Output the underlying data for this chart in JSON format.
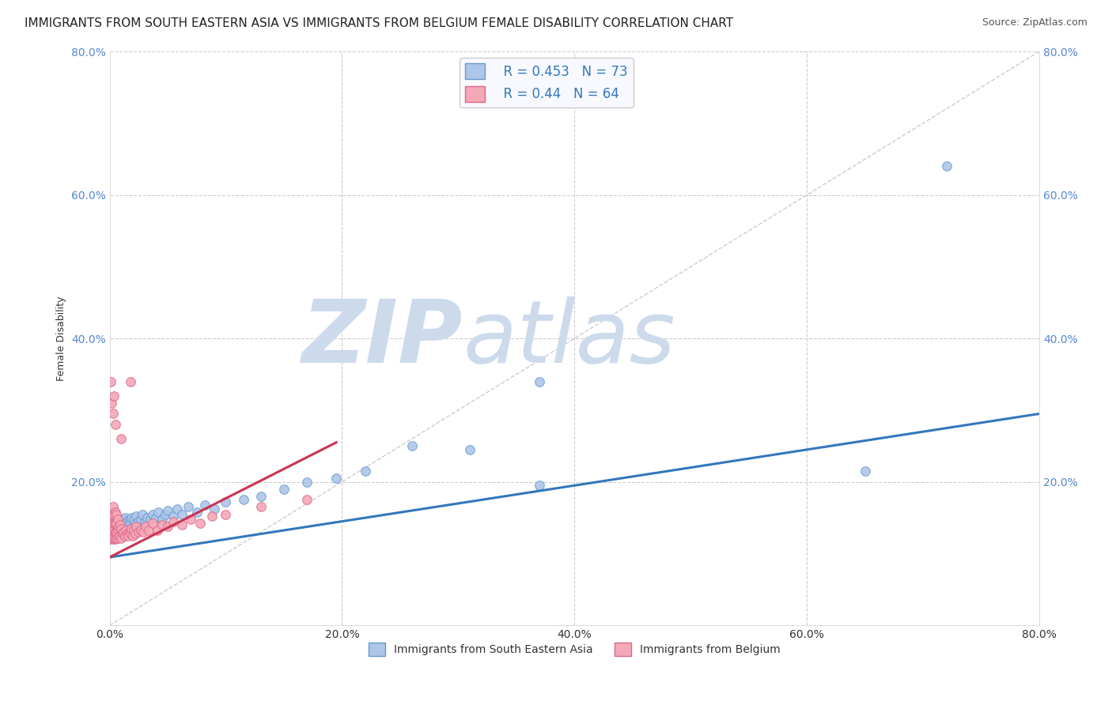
{
  "title": "IMMIGRANTS FROM SOUTH EASTERN ASIA VS IMMIGRANTS FROM BELGIUM FEMALE DISABILITY CORRELATION CHART",
  "source": "Source: ZipAtlas.com",
  "ylabel": "Female Disability",
  "xlim": [
    0.0,
    0.8
  ],
  "ylim": [
    0.0,
    0.8
  ],
  "xticks": [
    0.0,
    0.2,
    0.4,
    0.6,
    0.8
  ],
  "yticks": [
    0.0,
    0.2,
    0.4,
    0.6,
    0.8
  ],
  "xtick_labels": [
    "0.0%",
    "20.0%",
    "40.0%",
    "60.0%",
    "80.0%"
  ],
  "ytick_labels": [
    "",
    "20.0%",
    "40.0%",
    "60.0%",
    "80.0%"
  ],
  "series1": {
    "name": "Immigrants from South Eastern Asia",
    "color": "#aec6e8",
    "edge_color": "#6699cc",
    "R": 0.453,
    "N": 73,
    "trend_color": "#3377bb",
    "trend_x_start": 0.0,
    "trend_x_end": 0.8,
    "trend_y_start": 0.095,
    "trend_y_end": 0.295,
    "x": [
      0.001,
      0.001,
      0.002,
      0.002,
      0.003,
      0.003,
      0.003,
      0.004,
      0.004,
      0.004,
      0.005,
      0.005,
      0.005,
      0.006,
      0.006,
      0.006,
      0.007,
      0.007,
      0.008,
      0.008,
      0.009,
      0.009,
      0.01,
      0.01,
      0.011,
      0.011,
      0.012,
      0.012,
      0.013,
      0.013,
      0.014,
      0.015,
      0.015,
      0.016,
      0.017,
      0.018,
      0.019,
      0.02,
      0.021,
      0.022,
      0.023,
      0.025,
      0.027,
      0.028,
      0.03,
      0.032,
      0.035,
      0.037,
      0.04,
      0.042,
      0.045,
      0.048,
      0.05,
      0.055,
      0.058,
      0.062,
      0.068,
      0.075,
      0.082,
      0.09,
      0.1,
      0.115,
      0.13,
      0.15,
      0.17,
      0.195,
      0.22,
      0.26,
      0.31,
      0.37,
      0.37,
      0.65,
      0.72
    ],
    "y": [
      0.125,
      0.135,
      0.128,
      0.138,
      0.132,
      0.14,
      0.148,
      0.13,
      0.14,
      0.15,
      0.128,
      0.138,
      0.148,
      0.132,
      0.14,
      0.15,
      0.13,
      0.145,
      0.135,
      0.145,
      0.13,
      0.142,
      0.132,
      0.142,
      0.135,
      0.145,
      0.138,
      0.148,
      0.14,
      0.15,
      0.142,
      0.135,
      0.145,
      0.14,
      0.148,
      0.142,
      0.15,
      0.138,
      0.148,
      0.142,
      0.152,
      0.145,
      0.148,
      0.155,
      0.143,
      0.15,
      0.148,
      0.155,
      0.15,
      0.158,
      0.148,
      0.155,
      0.16,
      0.152,
      0.162,
      0.155,
      0.165,
      0.158,
      0.168,
      0.162,
      0.172,
      0.175,
      0.18,
      0.19,
      0.2,
      0.205,
      0.215,
      0.25,
      0.245,
      0.195,
      0.34,
      0.215,
      0.64
    ]
  },
  "series2": {
    "name": "Immigrants from Belgium",
    "color": "#f4a8b8",
    "edge_color": "#dd6688",
    "R": 0.44,
    "N": 64,
    "trend_color": "#cc3355",
    "trend_x_start": 0.0,
    "trend_x_end": 0.195,
    "trend_y_start": 0.095,
    "trend_y_end": 0.255,
    "x": [
      0.001,
      0.001,
      0.001,
      0.001,
      0.002,
      0.002,
      0.002,
      0.002,
      0.003,
      0.003,
      0.003,
      0.003,
      0.003,
      0.004,
      0.004,
      0.004,
      0.004,
      0.005,
      0.005,
      0.005,
      0.005,
      0.006,
      0.006,
      0.006,
      0.006,
      0.007,
      0.007,
      0.007,
      0.008,
      0.008,
      0.009,
      0.009,
      0.01,
      0.01,
      0.011,
      0.012,
      0.013,
      0.014,
      0.015,
      0.016,
      0.017,
      0.018,
      0.019,
      0.02,
      0.021,
      0.022,
      0.023,
      0.025,
      0.027,
      0.029,
      0.031,
      0.034,
      0.037,
      0.041,
      0.045,
      0.05,
      0.055,
      0.062,
      0.07,
      0.078,
      0.088,
      0.1,
      0.13,
      0.17
    ],
    "y": [
      0.12,
      0.13,
      0.14,
      0.155,
      0.122,
      0.132,
      0.145,
      0.158,
      0.12,
      0.13,
      0.14,
      0.152,
      0.165,
      0.122,
      0.132,
      0.142,
      0.155,
      0.12,
      0.13,
      0.142,
      0.158,
      0.122,
      0.13,
      0.142,
      0.155,
      0.122,
      0.132,
      0.148,
      0.125,
      0.138,
      0.125,
      0.14,
      0.122,
      0.135,
      0.128,
      0.13,
      0.125,
      0.132,
      0.128,
      0.125,
      0.13,
      0.128,
      0.135,
      0.125,
      0.132,
      0.128,
      0.138,
      0.13,
      0.132,
      0.13,
      0.138,
      0.132,
      0.142,
      0.132,
      0.14,
      0.138,
      0.145,
      0.14,
      0.148,
      0.142,
      0.152,
      0.155,
      0.165,
      0.175
    ]
  },
  "series2_outliers": {
    "x": [
      0.001,
      0.002,
      0.003,
      0.004,
      0.005,
      0.01,
      0.018
    ],
    "y": [
      0.34,
      0.31,
      0.295,
      0.32,
      0.28,
      0.26,
      0.34
    ]
  },
  "watermark_zip": "ZIP",
  "watermark_atlas": "atlas",
  "watermark_color": "#ccdaec",
  "legend_text_color": "#3377bb",
  "background_color": "#ffffff",
  "plot_bg_color": "#ffffff",
  "grid_color": "#cccccc",
  "title_fontsize": 11,
  "axis_label_fontsize": 9,
  "tick_fontsize": 10,
  "legend_fontsize": 12
}
